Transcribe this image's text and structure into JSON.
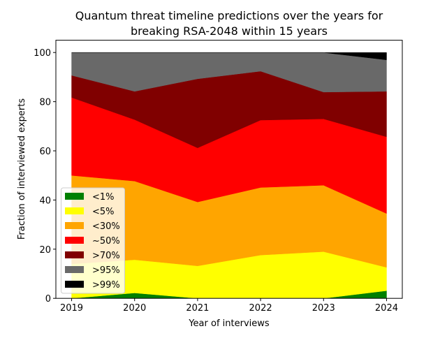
{
  "chart_data": {
    "type": "area",
    "stacked": true,
    "title": "Quantum threat timeline predictions over the years for\nbreaking RSA-2048 within 15 years",
    "xlabel": "Year of interviews",
    "ylabel": "Fraction of interviewed experts",
    "x": [
      2019,
      2020,
      2021,
      2022,
      2023,
      2024
    ],
    "xlim": [
      2018.75,
      2024.25
    ],
    "ylim": [
      0,
      105
    ],
    "xticks": [
      "2019",
      "2020",
      "2021",
      "2022",
      "2023",
      "2024"
    ],
    "yticks": [
      "0",
      "20",
      "40",
      "60",
      "80",
      "100"
    ],
    "grid": false,
    "legend_position": "lower-left",
    "series": [
      {
        "name": "<1%",
        "color": "#008000",
        "values": [
          0,
          2.2,
          0,
          0,
          0,
          3.1
        ]
      },
      {
        "name": "<5%",
        "color": "#ffff00",
        "values": [
          14,
          13.5,
          13.2,
          17.6,
          19.0,
          9.5
        ]
      },
      {
        "name": "<30%",
        "color": "#ffa500",
        "values": [
          36,
          32,
          26,
          27.5,
          27,
          21.9
        ]
      },
      {
        "name": "~50%",
        "color": "#ff0000",
        "values": [
          31.7,
          25,
          22,
          27.4,
          27,
          31.2
        ]
      },
      {
        "name": ">70%",
        "color": "#800000",
        "values": [
          9,
          11.5,
          28.1,
          19.9,
          10.9,
          18.5
        ]
      },
      {
        "name": ">95%",
        "color": "#696969",
        "values": [
          9.3,
          15.8,
          10.7,
          7.6,
          16.1,
          12.8
        ]
      },
      {
        "name": ">99%",
        "color": "#000000",
        "values": [
          0,
          0,
          0,
          0,
          0,
          3.0
        ]
      }
    ]
  }
}
